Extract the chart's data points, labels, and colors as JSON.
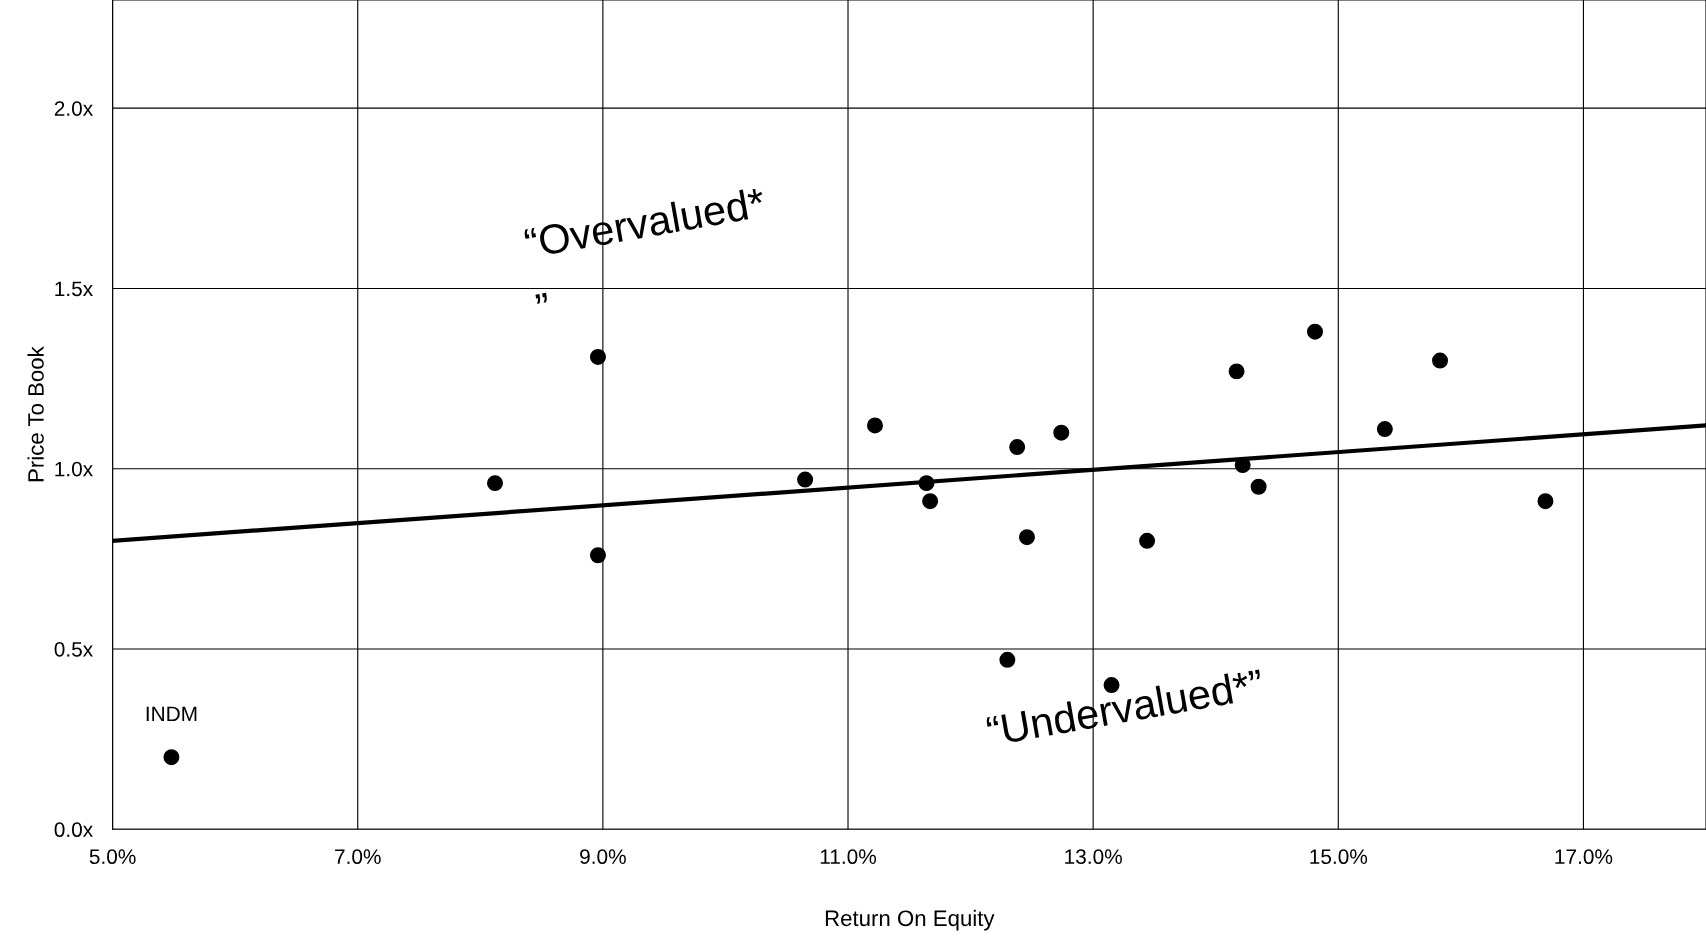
{
  "chart_data": {
    "type": "scatter",
    "xlabel": "Return On Equity",
    "ylabel": "Price To Book",
    "series": [
      {
        "color": "#000000",
        "marker": "circle",
        "x": [
          5.48,
          8.12,
          8.96,
          8.96,
          10.65,
          11.22,
          11.64,
          11.67,
          12.3,
          12.38,
          12.46,
          12.74,
          13.15,
          13.44,
          14.17,
          14.22,
          14.35,
          14.81,
          15.38,
          15.83,
          16.69
        ],
        "values": [
          0.2,
          0.96,
          1.31,
          0.76,
          0.97,
          1.12,
          0.96,
          0.91,
          0.47,
          1.06,
          0.81,
          1.1,
          0.4,
          0.8,
          1.27,
          1.01,
          0.95,
          1.38,
          1.11,
          1.3,
          0.91
        ]
      },
      {
        "type": "line",
        "color": "#000000",
        "marker": "none",
        "x": [
          5.0,
          18.0
        ],
        "values": [
          0.8,
          1.12
        ]
      }
    ],
    "xlim": [
      5.0,
      18.0
    ],
    "ylim": [
      0.0,
      2.3
    ],
    "xticks": [
      {
        "value": 5,
        "label": "5.0%"
      },
      {
        "value": 7,
        "label": "7.0%"
      },
      {
        "value": 9,
        "label": "9.0%"
      },
      {
        "value": 11,
        "label": "11.0%"
      },
      {
        "value": 13,
        "label": "13.0%"
      },
      {
        "value": 15,
        "label": "15.0%"
      },
      {
        "value": 17,
        "label": "17.0%"
      }
    ],
    "yticks": [
      {
        "value": 0,
        "label": "0.0x"
      },
      {
        "value": 0.5,
        "label": "0.5x"
      },
      {
        "value": 1.0,
        "label": "1.0x"
      },
      {
        "value": 1.5,
        "label": "1.5x"
      },
      {
        "value": 2.0,
        "label": "2.0x"
      }
    ],
    "grid": true,
    "annotations": [
      {
        "text": "INDM",
        "x": 5.48,
        "y": 0.2
      },
      "“Overvalued*\n”",
      "“Undervalued*”"
    ]
  }
}
